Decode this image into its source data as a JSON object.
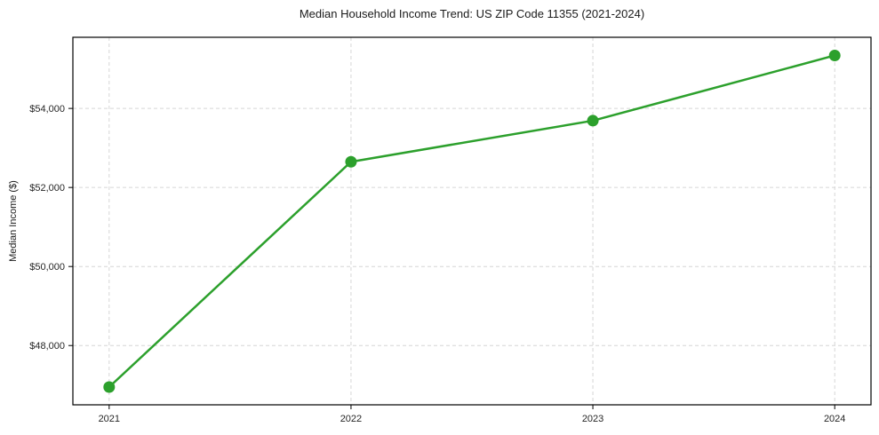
{
  "chart_data": {
    "type": "line",
    "title": "Median Household Income Trend: US ZIP Code 11355 (2021-2024)",
    "xlabel": "",
    "ylabel": "Median Income ($)",
    "x": [
      2021,
      2022,
      2023,
      2024
    ],
    "x_tick_labels": [
      "2021",
      "2022",
      "2023",
      "2024"
    ],
    "values": [
      46950,
      52650,
      53690,
      55340
    ],
    "series_name": "Median Household Income",
    "xlim": [
      2020.85,
      2024.15
    ],
    "ylim": [
      46500,
      55800
    ],
    "yticks": [
      48000,
      50000,
      52000,
      54000
    ],
    "y_tick_labels": [
      "$48,000",
      "$50,000",
      "$52,000",
      "$54,000"
    ],
    "grid": true,
    "grid_style": "dashed",
    "legend_position": "none",
    "colors": {
      "line": "#2ca02c",
      "marker": "#2ca02c",
      "grid": "#d6d6d6",
      "axis_frame": "#000000",
      "tick_text": "#262626",
      "background": "#ffffff"
    },
    "marker_shape": "circle",
    "marker_radius": 6.5,
    "line_width": 2.5
  }
}
